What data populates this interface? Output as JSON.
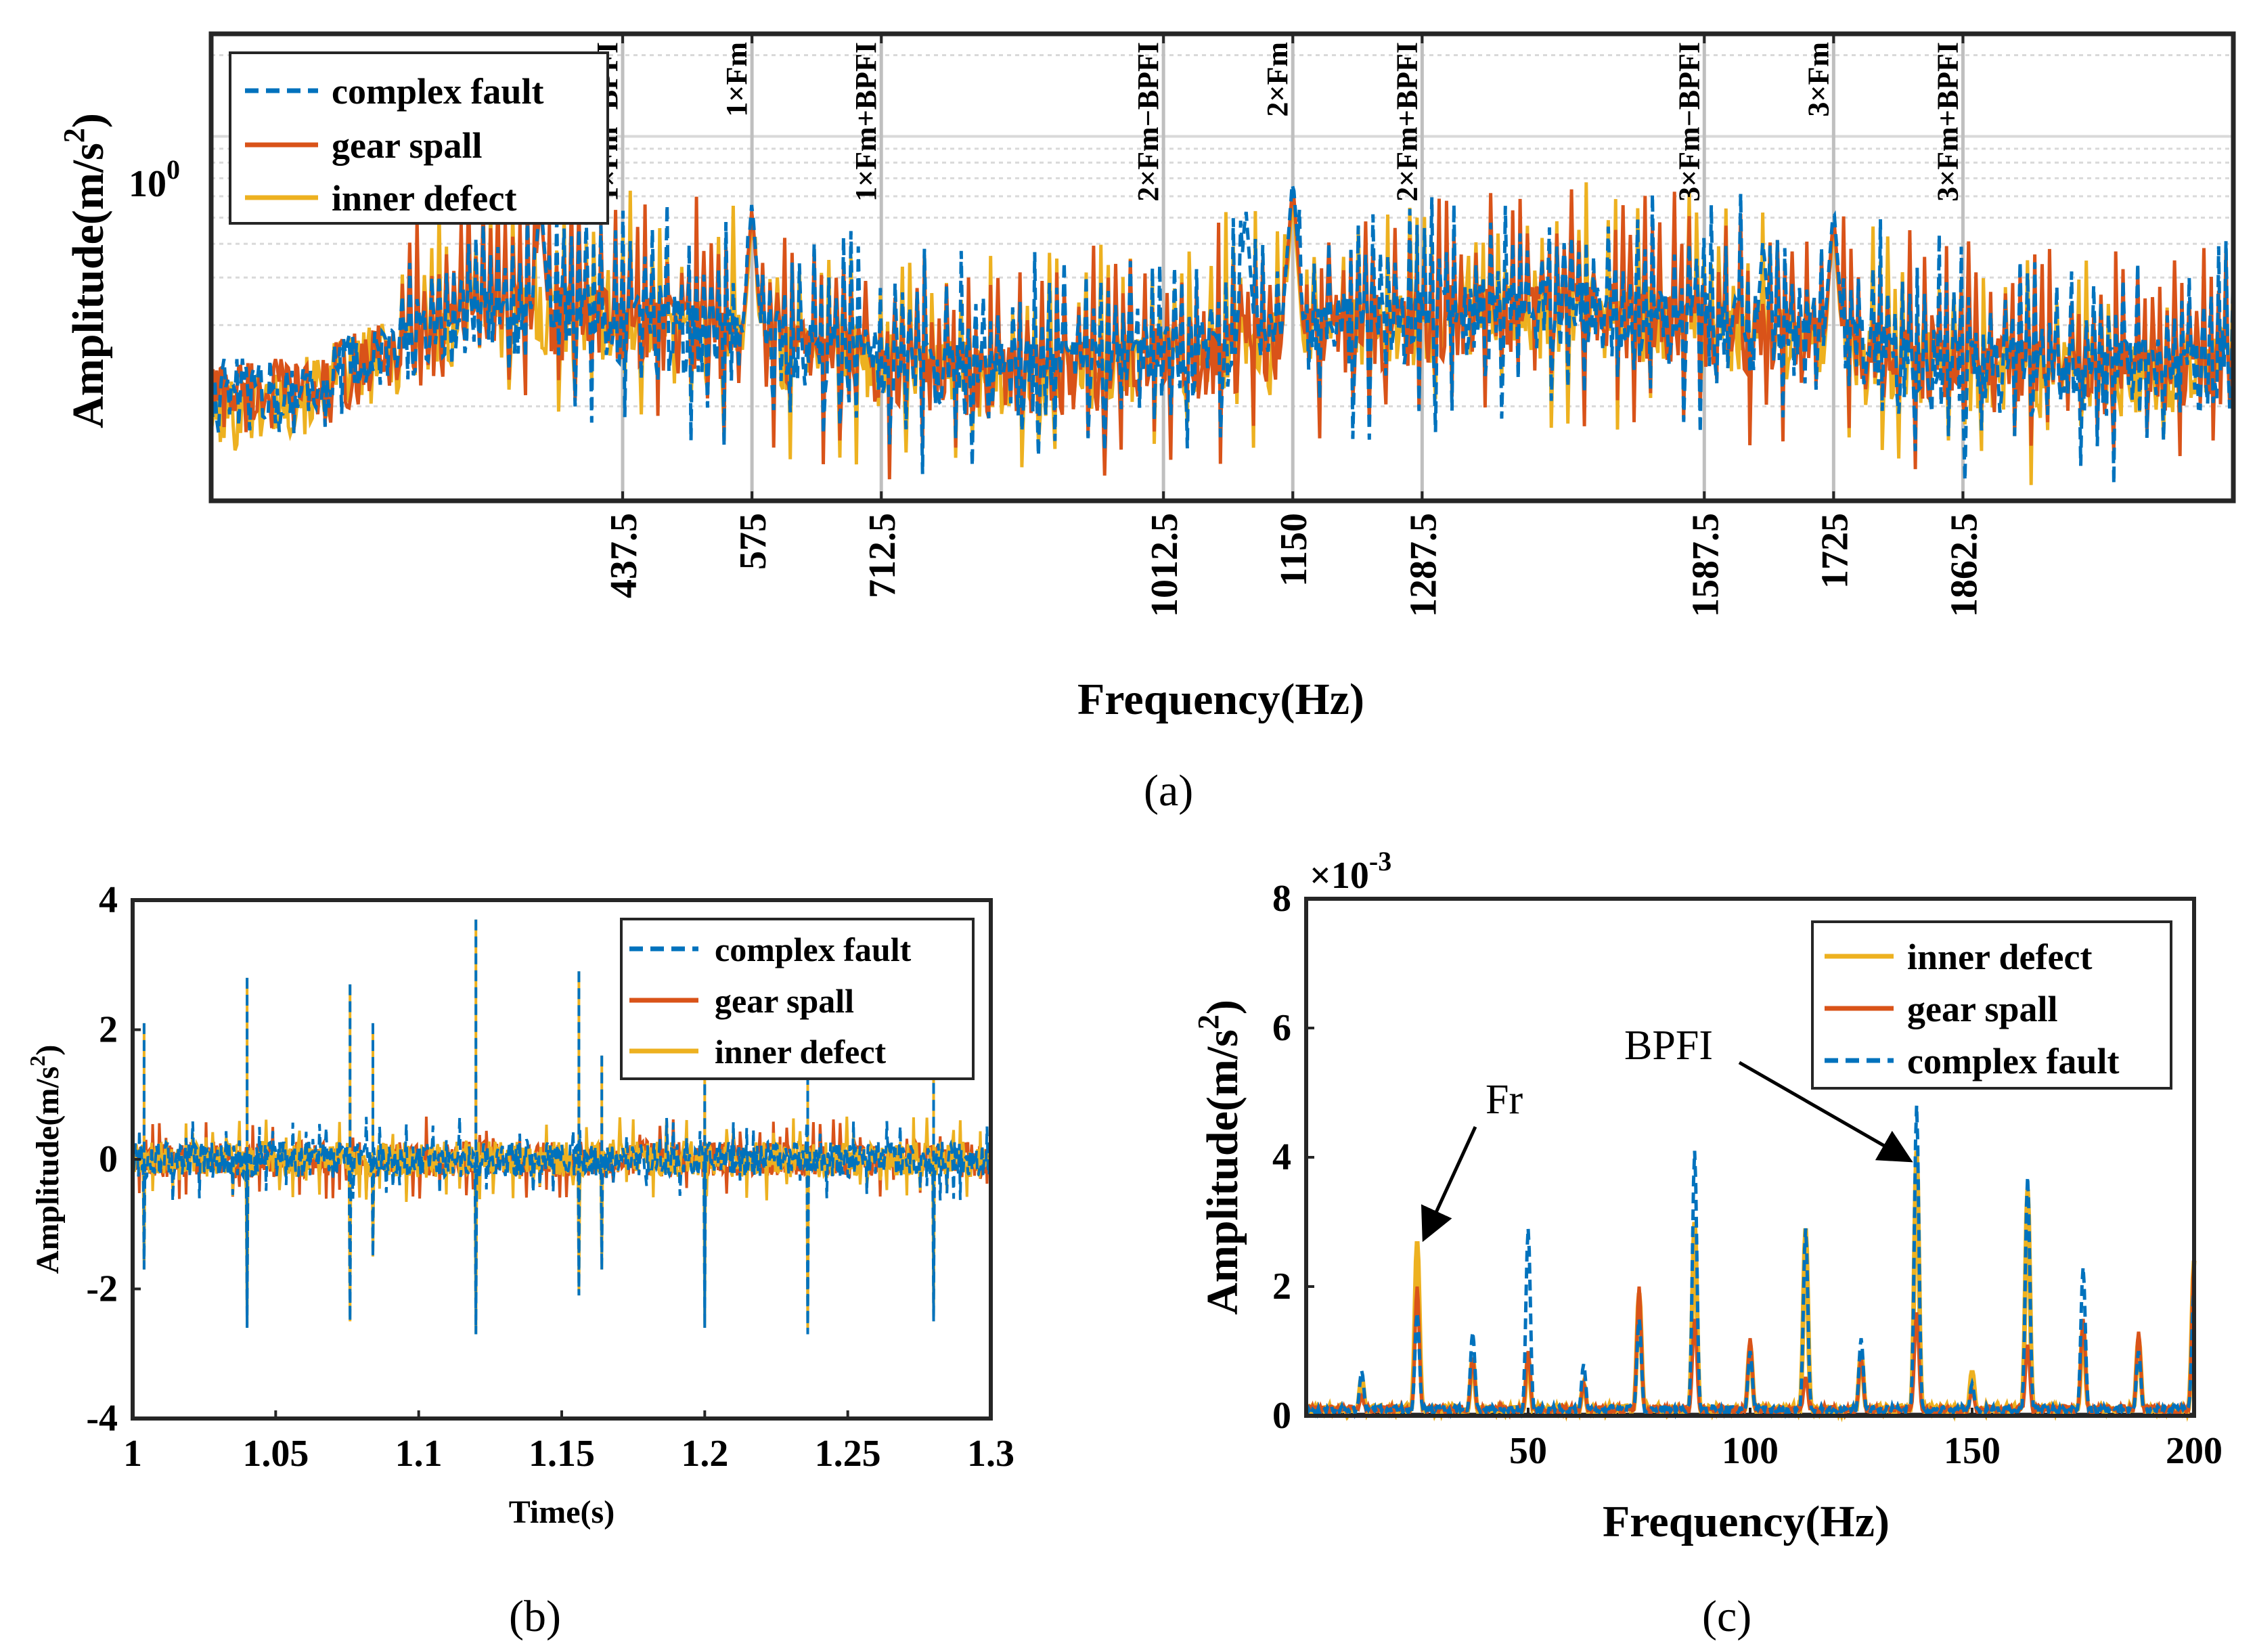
{
  "colors": {
    "complex_fault": "#0072BD",
    "gear_spall": "#D95319",
    "inner_defect": "#EDB120",
    "grid": "#d9d9d9",
    "annotation_line": "#bfbfbf"
  },
  "panels": {
    "a": {
      "label": "(a)"
    },
    "b": {
      "label": "(b)"
    },
    "c": {
      "label": "(c)"
    }
  },
  "chart_data": [
    {
      "id": "a",
      "type": "line",
      "xlabel": "Frequency(Hz)",
      "ylabel": "Amplitude(m/s²)",
      "ylabel_parts": [
        "Amplitude(m/s",
        "2",
        ")"
      ],
      "yscale": "log",
      "xlim": [
        0,
        2150
      ],
      "ylim_log10": [
        -1.35,
        0.38
      ],
      "ytick": {
        "value": 1,
        "label_base": "10",
        "label_exp": "0"
      },
      "grid": true,
      "legend": {
        "placement": "top-left",
        "entries": [
          "complex fault",
          "gear spall",
          "inner defect"
        ]
      },
      "xticks": [
        "437.5",
        "575",
        "712.5",
        "1012.5",
        "1150",
        "1287.5",
        "1587.5",
        "1725",
        "1862.5"
      ],
      "xtick_values": [
        437.5,
        575,
        712.5,
        1012.5,
        1150,
        1287.5,
        1587.5,
        1725,
        1862.5
      ],
      "annotations": [
        {
          "x": 437.5,
          "text": "1×Fm−BPFI"
        },
        {
          "x": 575,
          "text": "1×Fm"
        },
        {
          "x": 712.5,
          "text": "1×Fm+BPFI"
        },
        {
          "x": 1012.5,
          "text": "2×Fm−BPFI"
        },
        {
          "x": 1150,
          "text": "2×Fm"
        },
        {
          "x": 1287.5,
          "text": "2×Fm+BPFI"
        },
        {
          "x": 1587.5,
          "text": "3×Fm−BPFI"
        },
        {
          "x": 1725,
          "text": "3×Fm"
        },
        {
          "x": 1862.5,
          "text": "3×Fm+BPFI"
        }
      ],
      "series": [
        {
          "name": "complex fault",
          "style": "dashed",
          "peaks": [
            [
              575,
              0.58
            ],
            [
              1150,
              0.72
            ],
            [
              1725,
              0.56
            ],
            [
              350,
              0.62
            ],
            [
              1100,
              0.55
            ],
            [
              1650,
              0.42
            ]
          ]
        },
        {
          "name": "gear spall",
          "style": "solid",
          "peaks": [
            [
              575,
              0.55
            ],
            [
              1150,
              0.68
            ],
            [
              1725,
              0.52
            ],
            [
              350,
              0.58
            ]
          ]
        },
        {
          "name": "inner defect",
          "style": "solid",
          "peaks": [
            [
              575,
              0.5
            ],
            [
              1150,
              0.6
            ],
            [
              1725,
              0.48
            ]
          ]
        }
      ]
    },
    {
      "id": "b",
      "type": "line",
      "xlabel": "Time(s)",
      "ylabel": "Amplitude(m/s²)",
      "ylabel_parts": [
        "Amplitude(m/s",
        "2",
        ")"
      ],
      "xlim": [
        1,
        1.3
      ],
      "ylim": [
        -4,
        4
      ],
      "xticks": [
        "1",
        "1.05",
        "1.1",
        "1.15",
        "1.2",
        "1.25",
        "1.3"
      ],
      "xtick_values": [
        1,
        1.05,
        1.1,
        1.15,
        1.2,
        1.25,
        1.3
      ],
      "yticks": [
        "-4",
        "-2",
        "0",
        "2",
        "4"
      ],
      "ytick_values": [
        -4,
        -2,
        0,
        2,
        4
      ],
      "legend": {
        "placement": "top-right",
        "entries": [
          "complex fault",
          "gear spall",
          "inner defect"
        ]
      },
      "impulses": [
        {
          "t": 1.004,
          "up": 2.1,
          "down": -1.7
        },
        {
          "t": 1.04,
          "up": 2.8,
          "down": -2.6
        },
        {
          "t": 1.076,
          "up": 2.7,
          "down": -2.5
        },
        {
          "t": 1.084,
          "up": 2.1,
          "down": -1.5
        },
        {
          "t": 1.12,
          "up": 3.7,
          "down": -2.7
        },
        {
          "t": 1.156,
          "up": 2.9,
          "down": -2.1
        },
        {
          "t": 1.164,
          "up": 1.6,
          "down": -1.7
        },
        {
          "t": 1.2,
          "up": 2.2,
          "down": -2.6
        },
        {
          "t": 1.236,
          "up": 2.1,
          "down": -2.7
        },
        {
          "t": 1.28,
          "up": 1.7,
          "down": -2.5
        }
      ],
      "series": [
        {
          "name": "complex fault",
          "style": "dashed"
        },
        {
          "name": "gear spall",
          "style": "solid"
        },
        {
          "name": "inner defect",
          "style": "solid"
        }
      ]
    },
    {
      "id": "c",
      "type": "line",
      "xlabel": "Frequency(Hz)",
      "ylabel": "Amplitude(m/s²)",
      "ylabel_parts": [
        "Amplitude(m/s",
        "2",
        ")"
      ],
      "xlim": [
        0,
        200
      ],
      "ylim": [
        0,
        8
      ],
      "y_multiplier": {
        "base": "×10",
        "exp": "-3"
      },
      "xticks": [
        "50",
        "100",
        "150",
        "200"
      ],
      "xtick_values": [
        50,
        100,
        150,
        200
      ],
      "yticks": [
        "0",
        "2",
        "4",
        "6",
        "8"
      ],
      "ytick_values": [
        0,
        2,
        4,
        6,
        8
      ],
      "legend": {
        "placement": "top-right",
        "entries": [
          "inner defect",
          "gear spall",
          "complex fault"
        ]
      },
      "callouts": [
        {
          "text": "Fr",
          "x": 25,
          "y": 2.7
        },
        {
          "text": "BPFI",
          "x": 137.5,
          "y": 4.1
        }
      ],
      "series": [
        {
          "name": "inner defect",
          "style": "solid",
          "peaks": [
            [
              12.5,
              0.6
            ],
            [
              25,
              2.7
            ],
            [
              37.5,
              0.9
            ],
            [
              50,
              0.9
            ],
            [
              62.5,
              0.5
            ],
            [
              75,
              1.9
            ],
            [
              87.5,
              3.0
            ],
            [
              100,
              1.1
            ],
            [
              112.5,
              2.9
            ],
            [
              125,
              1.0
            ],
            [
              137.5,
              4.1
            ],
            [
              150,
              0.7
            ],
            [
              162.5,
              3.5
            ],
            [
              175,
              1.4
            ],
            [
              187.5,
              1.2
            ],
            [
              200,
              2.4
            ]
          ]
        },
        {
          "name": "gear spall",
          "style": "solid",
          "peaks": [
            [
              12.5,
              0.3
            ],
            [
              25,
              2.0
            ],
            [
              37.5,
              0.9
            ],
            [
              50,
              1.0
            ],
            [
              62.5,
              0.5
            ],
            [
              75,
              2.0
            ],
            [
              87.5,
              1.5
            ],
            [
              100,
              1.2
            ],
            [
              112.5,
              0.6
            ],
            [
              125,
              0.9
            ],
            [
              137.5,
              1.6
            ],
            [
              150,
              0.4
            ],
            [
              162.5,
              1.1
            ],
            [
              175,
              1.5
            ],
            [
              187.5,
              1.3
            ],
            [
              200,
              2.4
            ]
          ]
        },
        {
          "name": "complex fault",
          "style": "dashed",
          "peaks": [
            [
              12.5,
              0.7
            ],
            [
              25,
              1.6
            ],
            [
              37.5,
              1.3
            ],
            [
              50,
              2.9
            ],
            [
              62.5,
              0.8
            ],
            [
              75,
              1.5
            ],
            [
              87.5,
              4.1
            ],
            [
              100,
              1.0
            ],
            [
              112.5,
              2.9
            ],
            [
              125,
              1.2
            ],
            [
              137.5,
              4.8
            ],
            [
              150,
              0.5
            ],
            [
              162.5,
              3.7
            ],
            [
              175,
              2.3
            ],
            [
              187.5,
              1.0
            ],
            [
              200,
              2.0
            ]
          ]
        }
      ]
    }
  ]
}
